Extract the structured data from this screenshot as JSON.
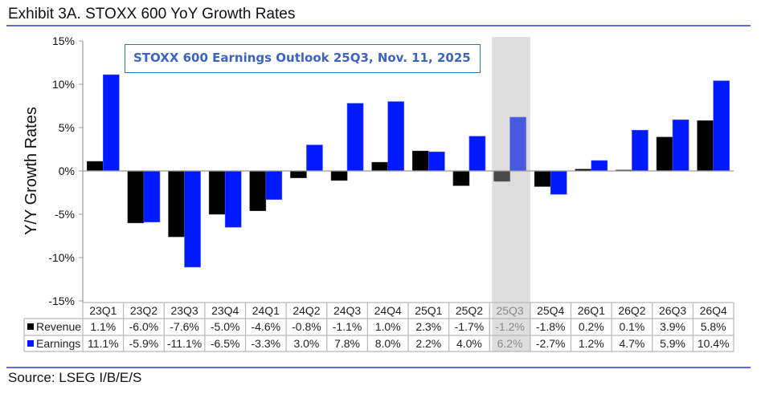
{
  "header": {
    "exhibit_title": "Exhibit 3A.  STOXX 600 YoY Growth Rates"
  },
  "footer": {
    "source": "Source: LSEG I/B/E/S"
  },
  "colors": {
    "revenue": "#000000",
    "earnings": "#0019ff",
    "highlight_band": "#dedede",
    "annotation_text": "#3b63c4",
    "annotation_border": "#2e75b6",
    "rule": "#5b6ee1"
  },
  "chart_data": {
    "type": "bar",
    "title": "Exhibit 3A.  STOXX 600 YoY Growth Rates",
    "annotation": "STOXX 600 Earnings Outlook 25Q3, Nov. 11, 2025",
    "xlabel": "",
    "ylabel": "Y/Y Growth Rates",
    "ylim": [
      -15,
      15
    ],
    "yticks": [
      15,
      10,
      5,
      0,
      -5,
      -10,
      -15
    ],
    "ytick_labels": [
      "15%",
      "10%",
      "5%",
      "0%",
      "-5%",
      "-10%",
      "-15%"
    ],
    "grid": false,
    "legend": "data-table-left",
    "highlighted_category": "25Q3",
    "categories": [
      "23Q1",
      "23Q2",
      "23Q3",
      "23Q4",
      "24Q1",
      "24Q2",
      "24Q3",
      "24Q4",
      "25Q1",
      "25Q2",
      "25Q3",
      "25Q4",
      "26Q1",
      "26Q2",
      "26Q3",
      "26Q4"
    ],
    "series": [
      {
        "name": "Revenue",
        "values": [
          1.1,
          -6.0,
          -7.6,
          -5.0,
          -4.6,
          -0.8,
          -1.1,
          1.0,
          2.3,
          -1.7,
          -1.2,
          -1.8,
          0.2,
          0.1,
          3.9,
          5.8
        ],
        "labels": [
          "1.1%",
          "-6.0%",
          "-7.6%",
          "-5.0%",
          "-4.6%",
          "-0.8%",
          "-1.1%",
          "1.0%",
          "2.3%",
          "-1.7%",
          "-1.2%",
          "-1.8%",
          "0.2%",
          "0.1%",
          "3.9%",
          "5.8%"
        ]
      },
      {
        "name": "Earnings",
        "values": [
          11.1,
          -5.9,
          -11.1,
          -6.5,
          -3.3,
          3.0,
          7.8,
          8.0,
          2.2,
          4.0,
          6.2,
          -2.7,
          1.2,
          4.7,
          5.9,
          10.4
        ],
        "labels": [
          "11.1%",
          "-5.9%",
          "-11.1%",
          "-6.5%",
          "-3.3%",
          "3.0%",
          "7.8%",
          "8.0%",
          "2.2%",
          "4.0%",
          "6.2%",
          "-2.7%",
          "1.2%",
          "4.7%",
          "5.9%",
          "10.4%"
        ]
      }
    ]
  }
}
